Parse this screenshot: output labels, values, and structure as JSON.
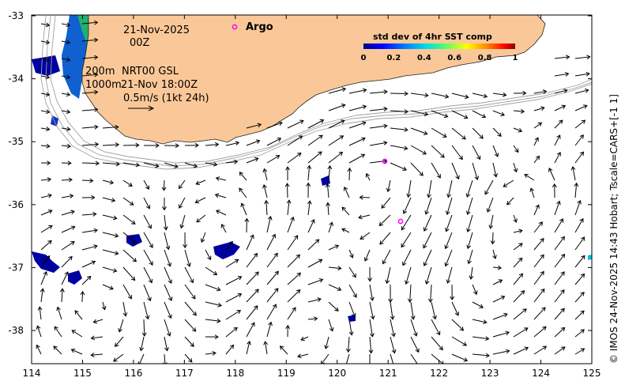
{
  "map": {
    "date_line": "21-Nov-2025",
    "time_line": "00Z",
    "depth_200": "200m",
    "product": "NRT00 GSL",
    "depth_1000": "1000m",
    "obs_time": "21-Nov 18:00Z",
    "scale_label": "0.5m/s (1kt 24h)",
    "argo_label": "Argo",
    "credit": "© IMOS 24-Nov-2025 14:43 Hobart; Tscale=CARS+[-1 1]",
    "colorbar": {
      "title": "std dev of 4hr SST comp",
      "ticks": [
        "0",
        "0.2",
        "0.4",
        "0.6",
        "0.8",
        "1"
      ],
      "colors": [
        "#00008b",
        "#0000ff",
        "#0080ff",
        "#00c0ff",
        "#00ffc0",
        "#80ff00",
        "#ffff00",
        "#ff8000",
        "#ff0000",
        "#8b0000"
      ]
    },
    "x_ticks": [
      "114",
      "115",
      "116",
      "117",
      "118",
      "119",
      "120",
      "121",
      "122",
      "123",
      "124",
      "125"
    ],
    "y_ticks": [
      "-33",
      "-34",
      "-35",
      "-36",
      "-37",
      "-38"
    ],
    "land_color": "#fac898",
    "argo_color": "#ff00ff"
  }
}
